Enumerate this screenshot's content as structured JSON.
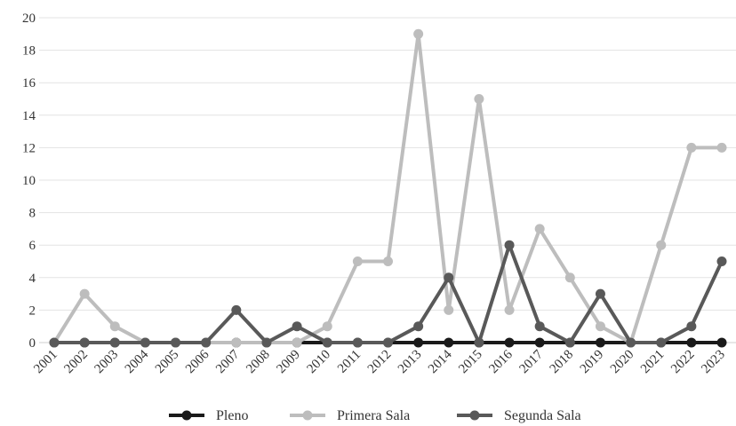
{
  "chart_data": {
    "type": "line",
    "title": "",
    "xlabel": "",
    "ylabel": "",
    "ylim": [
      0,
      20
    ],
    "yticks": [
      0,
      2,
      4,
      6,
      8,
      10,
      12,
      14,
      16,
      18,
      20
    ],
    "grid": true,
    "legend_position": "bottom",
    "categories": [
      "2001",
      "2002",
      "2003",
      "2004",
      "2005",
      "2006",
      "2007",
      "2008",
      "2009",
      "2010",
      "2011",
      "2012",
      "2013",
      "2014",
      "2015",
      "2016",
      "2017",
      "2018",
      "2019",
      "2020",
      "2021",
      "2022",
      "2023"
    ],
    "series": [
      {
        "name": "Pleno",
        "color": "#1a1a1a",
        "values": [
          0,
          0,
          0,
          0,
          0,
          0,
          0,
          0,
          0,
          0,
          0,
          0,
          0,
          0,
          0,
          0,
          0,
          0,
          0,
          0,
          0,
          0,
          0
        ]
      },
      {
        "name": "Primera Sala",
        "color": "#bdbdbd",
        "values": [
          0,
          3,
          1,
          0,
          0,
          0,
          0,
          0,
          0,
          1,
          5,
          5,
          19,
          2,
          15,
          2,
          7,
          4,
          1,
          0,
          6,
          12,
          12
        ]
      },
      {
        "name": "Segunda Sala",
        "color": "#595959",
        "values": [
          0,
          0,
          0,
          0,
          0,
          0,
          2,
          0,
          1,
          0,
          0,
          0,
          1,
          4,
          0,
          6,
          1,
          0,
          3,
          0,
          0,
          1,
          5
        ]
      }
    ]
  }
}
